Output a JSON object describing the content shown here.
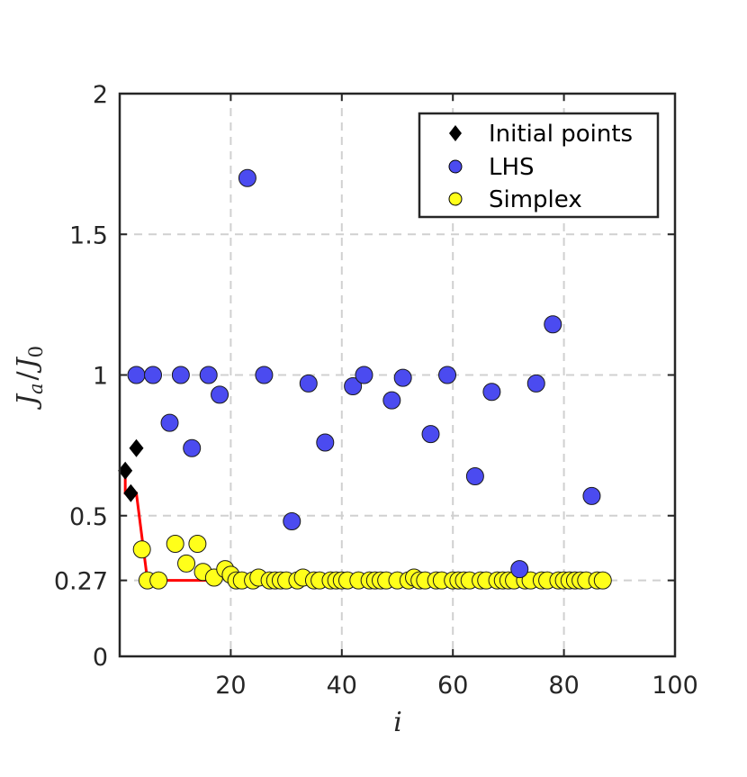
{
  "chart_data": {
    "type": "scatter",
    "xlabel_main": "i",
    "ylabel_main": "J",
    "ylabel_sub_a": "a",
    "ylabel_slash": "/",
    "ylabel_main_2": "J",
    "ylabel_sub_0": "0",
    "xlim": [
      0,
      100
    ],
    "ylim": [
      0,
      2
    ],
    "x_ticks": [
      20,
      40,
      60,
      80,
      100
    ],
    "y_ticks": [
      0,
      0.27,
      0.5,
      1,
      1.5,
      2
    ],
    "x_tick_labels": [
      "20",
      "40",
      "60",
      "80",
      "100"
    ],
    "y_tick_labels": [
      "0",
      "0.27",
      "0.5",
      "1",
      "1.5",
      "2"
    ],
    "grid": true,
    "legend_position": "top-right",
    "series": [
      {
        "name": "Initial points",
        "marker": "diamond",
        "color": "#000000",
        "x": [
          1,
          2,
          3
        ],
        "y": [
          0.66,
          0.58,
          0.74
        ]
      },
      {
        "name": "LHS",
        "marker": "circle",
        "color": "#4b4bf0",
        "x": [
          3,
          6,
          9,
          11,
          13,
          16,
          18,
          23,
          26,
          31,
          34,
          37,
          42,
          44,
          49,
          51,
          59,
          56,
          64,
          67,
          72,
          75,
          78,
          85
        ],
        "y": [
          1.0,
          1.0,
          0.83,
          1.0,
          0.74,
          1.0,
          0.93,
          1.7,
          1.0,
          0.48,
          0.97,
          0.76,
          0.96,
          1.0,
          0.91,
          0.99,
          1.0,
          0.79,
          0.64,
          0.94,
          0.31,
          0.97,
          1.18,
          0.57
        ]
      },
      {
        "name": "Simplex",
        "marker": "circle",
        "color": "#ffff1a",
        "x": [
          4,
          5,
          7,
          10,
          12,
          14,
          15,
          17,
          19,
          20,
          21,
          22,
          24,
          25,
          27,
          28,
          29,
          30,
          32,
          33,
          35,
          36,
          38,
          39,
          40,
          41,
          43,
          45,
          46,
          47,
          48,
          50,
          52,
          53,
          54,
          55,
          57,
          58,
          60,
          61,
          62,
          63,
          65,
          66,
          68,
          69,
          70,
          71,
          73,
          74,
          76,
          77,
          79,
          80,
          81,
          82,
          83,
          84,
          86,
          87
        ],
        "y": [
          0.38,
          0.27,
          0.27,
          0.4,
          0.33,
          0.4,
          0.3,
          0.28,
          0.31,
          0.29,
          0.27,
          0.27,
          0.27,
          0.28,
          0.27,
          0.27,
          0.27,
          0.27,
          0.27,
          0.28,
          0.27,
          0.27,
          0.27,
          0.27,
          0.27,
          0.27,
          0.27,
          0.27,
          0.27,
          0.27,
          0.27,
          0.27,
          0.27,
          0.28,
          0.27,
          0.27,
          0.27,
          0.27,
          0.27,
          0.27,
          0.27,
          0.27,
          0.27,
          0.27,
          0.27,
          0.27,
          0.27,
          0.27,
          0.27,
          0.27,
          0.27,
          0.27,
          0.27,
          0.27,
          0.27,
          0.27,
          0.27,
          0.27,
          0.27,
          0.27
        ]
      },
      {
        "name": "",
        "marker": "line",
        "color": "#ff0000",
        "x": [
          1,
          1,
          3,
          3,
          5,
          18
        ],
        "y": [
          0.66,
          0.58,
          0.58,
          0.58,
          0.27,
          0.27
        ]
      }
    ]
  }
}
